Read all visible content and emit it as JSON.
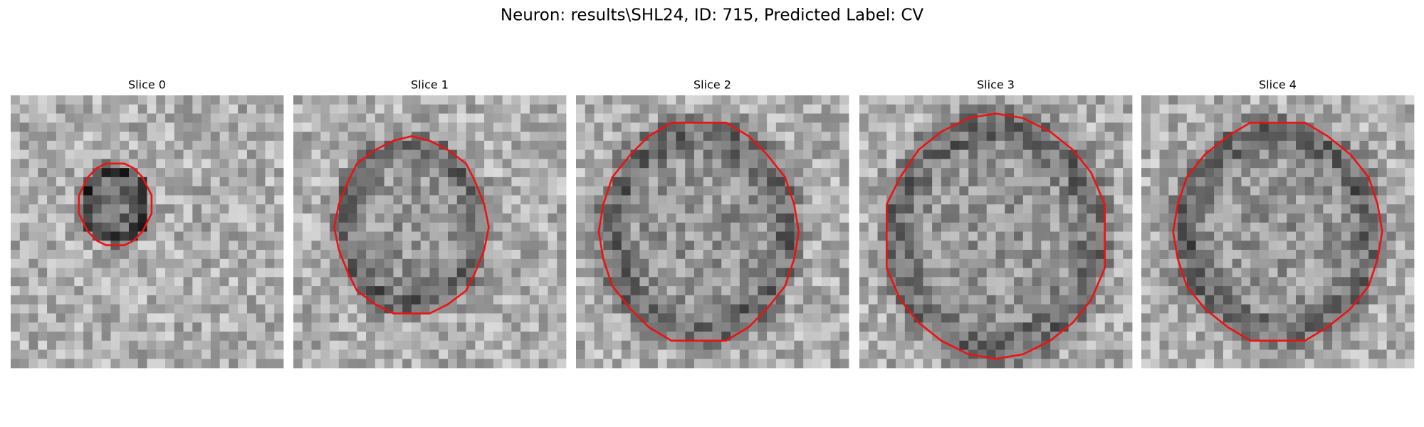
{
  "figure": {
    "title": "Neuron: results\\SHL24, ID: 715, Predicted Label: CV",
    "panels": [
      {
        "title": "Slice 0"
      },
      {
        "title": "Slice 1"
      },
      {
        "title": "Slice 2"
      },
      {
        "title": "Slice 3"
      },
      {
        "title": "Slice 4"
      }
    ]
  }
}
